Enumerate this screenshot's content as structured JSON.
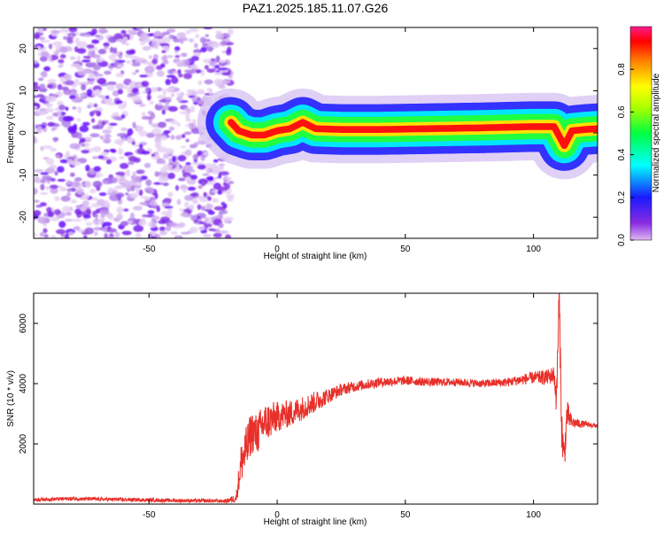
{
  "title": "PAZ1.2025.185.11.07.G26",
  "colors": {
    "snr_line": "#e8302a",
    "axis": "#000000",
    "background": "#ffffff"
  },
  "colorbar": {
    "label": "Normalized spectral amplitude",
    "ticks": [
      "0.0",
      "0.2",
      "0.4",
      "0.6",
      "0.8"
    ],
    "range": [
      0,
      1
    ],
    "colormap": "rainbow (violet → blue → cyan → green → yellow → red → magenta)"
  },
  "chart_data": [
    {
      "type": "heatmap",
      "title": "PAZ1.2025.185.11.07.G26",
      "xlabel": "Height of straight line (km)",
      "ylabel": "Frequency (Hz)",
      "xlim": [
        -95,
        125
      ],
      "ylim": [
        -25,
        25
      ],
      "x_ticks": [
        "-50",
        "0",
        "50",
        "100"
      ],
      "y_ticks": [
        "-20",
        "-10",
        "0",
        "10",
        "20"
      ],
      "noise_region_x": [
        -95,
        -18
      ],
      "ridge": {
        "description": "narrow high-amplitude band near 0-2 Hz",
        "x": [
          -18,
          -15,
          -10,
          -5,
          0,
          5,
          10,
          15,
          25,
          40,
          60,
          80,
          100,
          108,
          112,
          115,
          120,
          125
        ],
        "frequency": [
          2.5,
          0.5,
          -0.5,
          -0.5,
          0.5,
          1.0,
          2.5,
          1.0,
          0.8,
          0.8,
          1.0,
          1.2,
          1.5,
          1.5,
          -3.0,
          0.5,
          0.8,
          1.0
        ]
      }
    },
    {
      "type": "line",
      "xlabel": "Height of straight line (km)",
      "ylabel": "SNR (10 * v/v)",
      "xlim": [
        -95,
        125
      ],
      "ylim": [
        0,
        7000
      ],
      "x_ticks": [
        "-50",
        "0",
        "50",
        "100"
      ],
      "y_ticks": [
        "2000",
        "4000",
        "6000"
      ],
      "series": [
        {
          "x": [
            -95,
            -80,
            -60,
            -40,
            -20,
            -16,
            -14,
            -12,
            -10,
            -8,
            -5,
            -2,
            0,
            5,
            10,
            15,
            20,
            25,
            30,
            40,
            50,
            60,
            70,
            80,
            90,
            100,
            105,
            108,
            109,
            110,
            111,
            112,
            113,
            115,
            120,
            125
          ],
          "values": [
            150,
            180,
            150,
            120,
            100,
            200,
            1400,
            1800,
            2400,
            2300,
            2700,
            2800,
            2900,
            3000,
            3200,
            3400,
            3600,
            3800,
            3900,
            4050,
            4100,
            4050,
            4050,
            4000,
            4050,
            4200,
            4200,
            4300,
            3500,
            7000,
            2500,
            1500,
            3000,
            2700,
            2650,
            2600
          ],
          "noise_amplitude": [
            60,
            60,
            60,
            60,
            60,
            150,
            700,
            800,
            700,
            700,
            650,
            600,
            500,
            450,
            400,
            350,
            250,
            200,
            180,
            160,
            150,
            140,
            130,
            130,
            150,
            200,
            250,
            300,
            600,
            700,
            700,
            600,
            500,
            200,
            100,
            80
          ]
        }
      ]
    }
  ]
}
